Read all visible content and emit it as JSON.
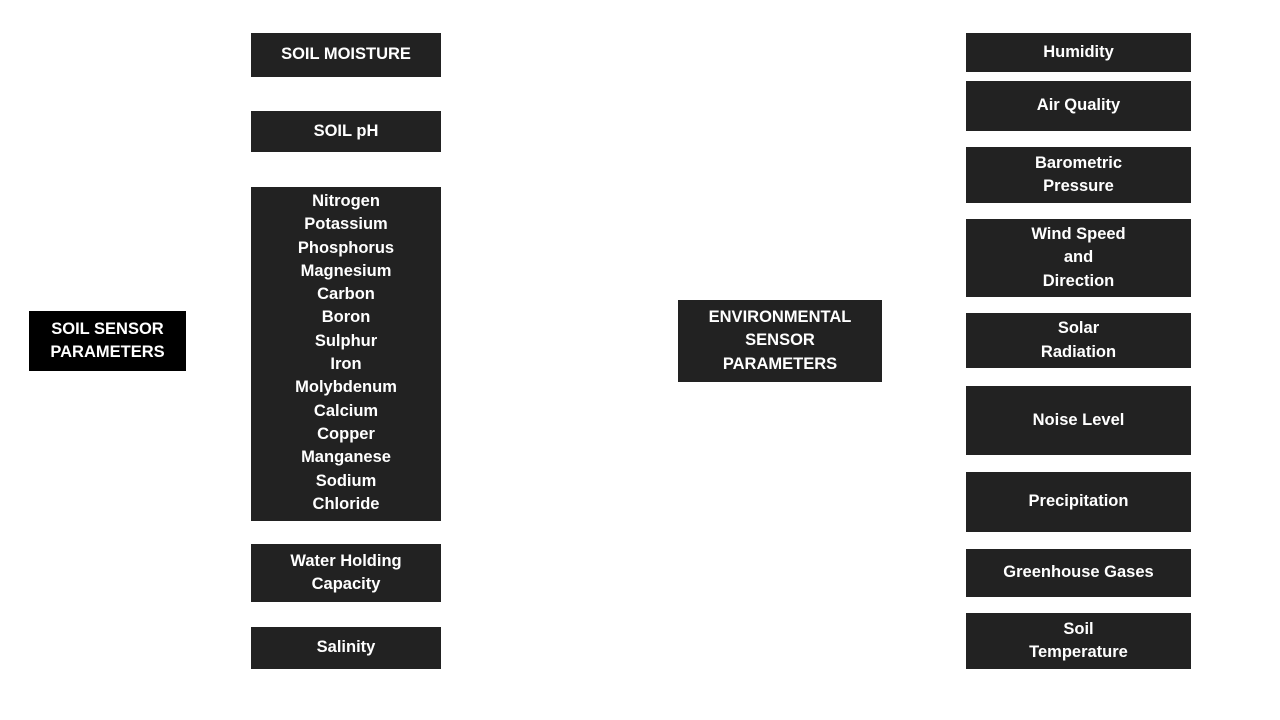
{
  "soil": {
    "title": "SOIL SENSOR\nPARAMETERS",
    "moisture": "SOIL MOISTURE",
    "ph": "SOIL pH",
    "nutrients": [
      "Nitrogen",
      "Potassium",
      "Phosphorus",
      "Magnesium",
      "Carbon",
      "Boron",
      "Sulphur",
      "Iron",
      "Molybdenum",
      "Calcium",
      "Copper",
      "Manganese",
      "Sodium",
      "Chloride"
    ],
    "water_holding": "Water Holding\nCapacity",
    "salinity": "Salinity"
  },
  "environment": {
    "title": "ENVIRONMENTAL\nSENSOR\nPARAMETERS",
    "humidity": "Humidity",
    "air_quality": "Air Quality",
    "barometric": "Barometric\nPressure",
    "wind": "Wind Speed\nand\nDirection",
    "solar": "Solar\nRadiation",
    "noise": "Noise Level",
    "precipitation": "Precipitation",
    "greenhouse": "Greenhouse Gases",
    "soil_temperature": "Soil\nTemperature"
  }
}
